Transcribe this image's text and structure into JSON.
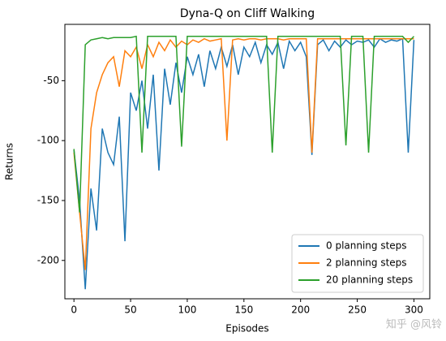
{
  "chart_data": {
    "type": "line",
    "title": "Dyna-Q on Cliff Walking",
    "x_label": "Episodes",
    "y_label": "Returns",
    "x": [
      0,
      5,
      10,
      15,
      20,
      25,
      30,
      35,
      40,
      45,
      50,
      55,
      60,
      65,
      70,
      75,
      80,
      85,
      90,
      95,
      100,
      105,
      110,
      115,
      120,
      125,
      130,
      135,
      140,
      145,
      150,
      155,
      160,
      165,
      170,
      175,
      180,
      185,
      190,
      195,
      200,
      205,
      210,
      215,
      220,
      225,
      230,
      235,
      240,
      245,
      250,
      255,
      260,
      265,
      270,
      275,
      280,
      285,
      290,
      295,
      300
    ],
    "series": [
      {
        "name": "0 planning steps",
        "color": "#1f77b4",
        "values": [
          -108,
          -150,
          -224,
          -140,
          -175,
          -90,
          -110,
          -120,
          -80,
          -184,
          -60,
          -75,
          -50,
          -90,
          -45,
          -125,
          -40,
          -70,
          -35,
          -60,
          -30,
          -45,
          -28,
          -55,
          -25,
          -40,
          -22,
          -38,
          -20,
          -45,
          -22,
          -30,
          -18,
          -35,
          -20,
          -28,
          -18,
          -40,
          -17,
          -25,
          -18,
          -30,
          -112,
          -20,
          -16,
          -25,
          -17,
          -22,
          -16,
          -20,
          -17,
          -18,
          -16,
          -22,
          -15,
          -18,
          -16,
          -17,
          -15,
          -110,
          -16
        ]
      },
      {
        "name": "2 planning steps",
        "color": "#ff7f0e",
        "values": [
          -110,
          -160,
          -208,
          -90,
          -60,
          -45,
          -35,
          -30,
          -55,
          -25,
          -30,
          -22,
          -40,
          -20,
          -30,
          -18,
          -25,
          -16,
          -22,
          -17,
          -20,
          -16,
          -18,
          -15,
          -17,
          -16,
          -15,
          -100,
          -16,
          -15,
          -16,
          -15,
          -15,
          -16,
          -15,
          -15,
          -15,
          -16,
          -15,
          -15,
          -15,
          -15,
          -110,
          -15,
          -15,
          -15,
          -15,
          -15,
          -15,
          -15,
          -15,
          -15,
          -15,
          -15,
          -15,
          -15,
          -15,
          -15,
          -15,
          -15,
          -15
        ]
      },
      {
        "name": "20 planning steps",
        "color": "#2ca02c",
        "values": [
          -107,
          -160,
          -20,
          -16,
          -15,
          -14,
          -15,
          -14,
          -14,
          -14,
          -14,
          -13,
          -110,
          -13,
          -13,
          -13,
          -13,
          -13,
          -13,
          -105,
          -13,
          -13,
          -13,
          -13,
          -13,
          -13,
          -13,
          -13,
          -13,
          -13,
          -13,
          -13,
          -13,
          -13,
          -13,
          -110,
          -13,
          -13,
          -13,
          -13,
          -13,
          -13,
          -13,
          -13,
          -13,
          -13,
          -13,
          -13,
          -104,
          -13,
          -13,
          -13,
          -110,
          -13,
          -13,
          -13,
          -13,
          -13,
          -13,
          -18,
          -13
        ]
      }
    ],
    "xlim": [
      -8,
      314
    ],
    "ylim": [
      -232,
      -3
    ],
    "xticks": [
      0,
      50,
      100,
      150,
      200,
      250,
      300
    ],
    "yticks": [
      -200,
      -150,
      -100,
      -50
    ],
    "legend": "lower right",
    "watermark": "知乎 @风铃"
  }
}
